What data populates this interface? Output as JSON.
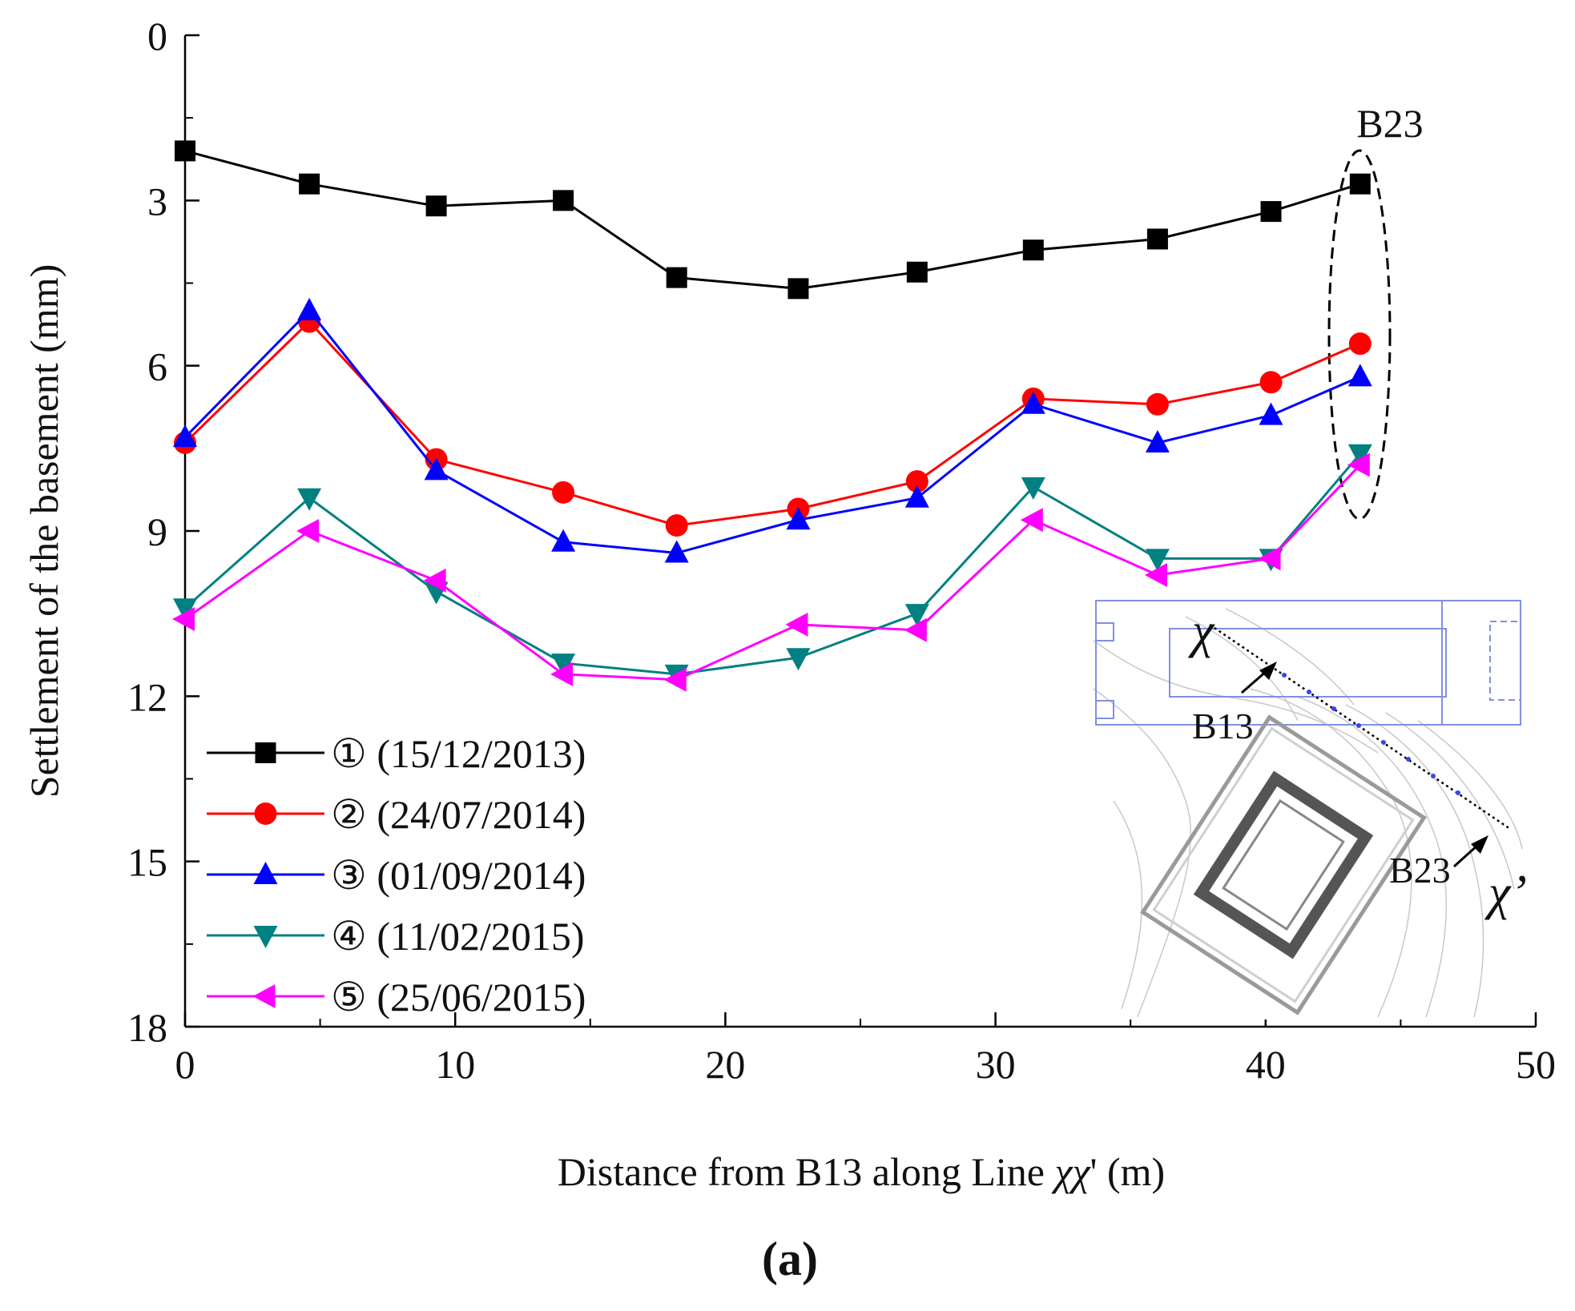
{
  "chart_data": {
    "type": "line",
    "title": "",
    "panel_label": "(a)",
    "xlabel_prefix": "Distance from B13 along Line ",
    "xlabel_symbol": "χχ",
    "xlabel_suffix": "' (m)",
    "ylabel": "Settlement of the basement (mm)",
    "xlim": [
      0,
      50
    ],
    "ylim": [
      0,
      18
    ],
    "y_inverted": true,
    "x_ticks": [
      0,
      10,
      20,
      30,
      40,
      50
    ],
    "y_ticks": [
      0,
      3,
      6,
      9,
      12,
      15,
      18
    ],
    "x_tick_labels": [
      "0",
      "10",
      "20",
      "30",
      "40",
      "50"
    ],
    "y_tick_labels": [
      "0",
      "3",
      "6",
      "9",
      "12",
      "15",
      "18"
    ],
    "legend_position": "bottom-left",
    "x": [
      0,
      4.6,
      9.3,
      14.0,
      18.2,
      22.7,
      27.1,
      31.4,
      36.0,
      40.2,
      43.5
    ],
    "series": [
      {
        "name": "① (15/12/2013)",
        "marker": "square",
        "color": "#000000",
        "values": [
          2.1,
          2.7,
          3.1,
          3.0,
          4.4,
          4.6,
          4.3,
          3.9,
          3.7,
          3.2,
          2.7
        ]
      },
      {
        "name": "② (24/07/2014)",
        "marker": "circle",
        "color": "#ff0000",
        "values": [
          7.4,
          5.2,
          7.7,
          8.3,
          8.9,
          8.6,
          8.1,
          6.6,
          6.7,
          6.3,
          5.6
        ]
      },
      {
        "name": "③ (01/09/2014)",
        "marker": "triangle-up",
        "color": "#0000ff",
        "values": [
          7.3,
          5.0,
          7.9,
          9.2,
          9.4,
          8.8,
          8.4,
          6.7,
          7.4,
          6.9,
          6.2
        ]
      },
      {
        "name": "④ (11/02/2015)",
        "marker": "triangle-down",
        "color": "#008080",
        "values": [
          10.4,
          8.4,
          10.1,
          11.4,
          11.6,
          11.3,
          10.5,
          8.2,
          9.5,
          9.5,
          7.6
        ]
      },
      {
        "name": "⑤ (25/06/2015)",
        "marker": "triangle-left",
        "color": "#ff00ff",
        "values": [
          10.6,
          9.0,
          9.9,
          11.6,
          11.7,
          10.7,
          10.8,
          8.8,
          9.8,
          9.5,
          7.8
        ]
      }
    ],
    "annotations": {
      "top_label": "B23",
      "inset": {
        "line_start_label": "χ",
        "line_end_label": "χ’",
        "point_start_label": "B13",
        "point_end_label": "B23"
      }
    }
  }
}
